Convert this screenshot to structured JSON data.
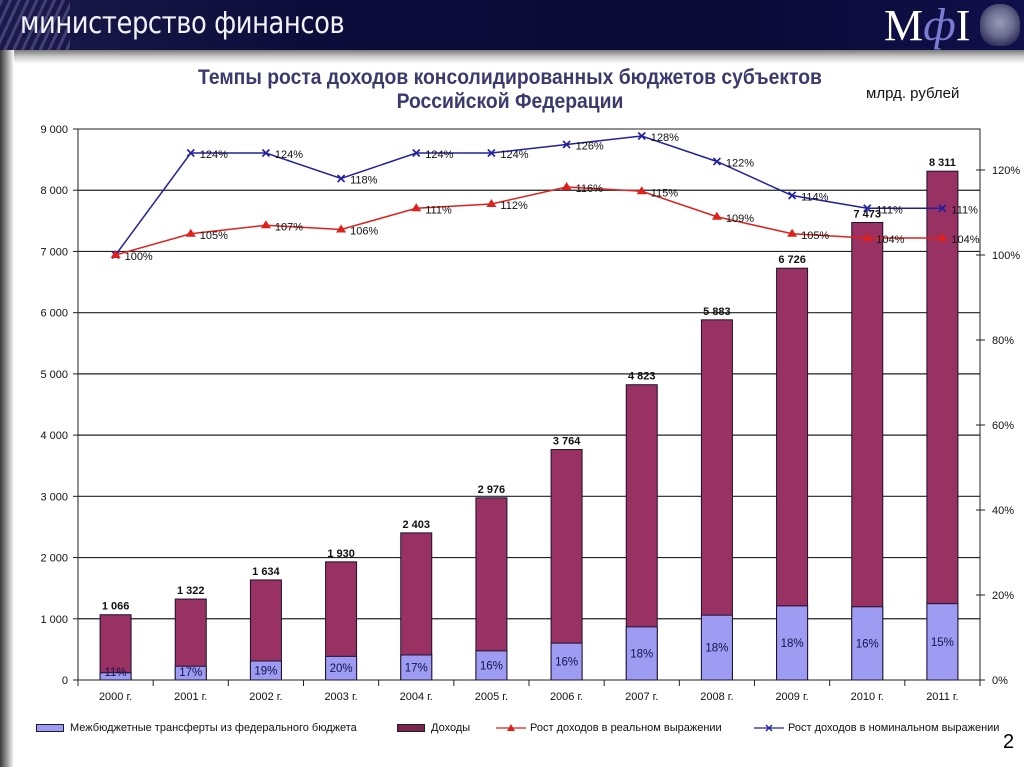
{
  "header": {
    "ministry_name": "министерство финансов",
    "logo_text_m": "М",
    "logo_text_phi": "ф",
    "logo_text_i": "I",
    "emblem_icon": "coat-of-arms-icon"
  },
  "slide": {
    "title_line1": "Темпы роста доходов консолидированных бюджетов субъектов",
    "title_line2": "Российской Федерации",
    "units": "млрд. рублей",
    "page_number": "2"
  },
  "colors": {
    "income": "#9a3163",
    "transfers": "#9d9cf2",
    "real_growth": "#e0201c",
    "nominal_growth": "#2020a0"
  },
  "chart_data": {
    "type": "bar",
    "title": "Темпы роста доходов консолидированных бюджетов субъектов Российской Федерации",
    "xlabel": "",
    "ylabel": "млрд. рублей",
    "categories": [
      "2000 г.",
      "2001 г.",
      "2002 г.",
      "2003 г.",
      "2004 г.",
      "2005 г.",
      "2006 г.",
      "2007 г.",
      "2008 г.",
      "2009 г.",
      "2010 г.",
      "2011 г."
    ],
    "ylim": [
      0,
      9000
    ],
    "y_ticks": [
      "0",
      "1 000",
      "2 000",
      "3 000",
      "4 000",
      "5 000",
      "6 000",
      "7 000",
      "8 000",
      "9 000"
    ],
    "y2lim": [
      0,
      1.3
    ],
    "y2_ticks": [
      "0%",
      "20%",
      "40%",
      "60%",
      "80%",
      "100%",
      "120%"
    ],
    "grid": true,
    "legend_position": "bottom",
    "series": [
      {
        "name": "Доходы",
        "kind": "bar",
        "axis": "left",
        "values": [
          1066,
          1322,
          1634,
          1930,
          2403,
          2976,
          3764,
          4823,
          5883,
          6726,
          7473,
          8311
        ],
        "labels": [
          "1 066",
          "1 322",
          "1 634",
          "1 930",
          "2 403",
          "2 976",
          "3 764",
          "4 823",
          "5 883",
          "6 726",
          "7 473",
          "8 311"
        ]
      },
      {
        "name": "Межбюджетные трансферты из федерального бюджета",
        "kind": "bar",
        "axis": "left",
        "share_percent": [
          11,
          17,
          19,
          20,
          17,
          16,
          16,
          18,
          18,
          18,
          16,
          15
        ],
        "labels": [
          "11%",
          "17%",
          "19%",
          "20%",
          "17%",
          "16%",
          "16%",
          "18%",
          "18%",
          "18%",
          "16%",
          "15%"
        ]
      },
      {
        "name": "Рост доходов в реальном выражении",
        "kind": "line",
        "axis": "right",
        "marker": "triangle",
        "values": [
          100,
          105,
          107,
          106,
          111,
          112,
          116,
          115,
          109,
          105,
          104,
          104
        ],
        "labels": [
          "100%",
          "105%",
          "107%",
          "106%",
          "111%",
          "112%",
          "116%",
          "115%",
          "109%",
          "105%",
          "104%",
          "104%"
        ]
      },
      {
        "name": "Рост доходов в номинальном выражении",
        "kind": "line",
        "axis": "right",
        "marker": "x",
        "values": [
          100,
          124,
          124,
          118,
          124,
          124,
          126,
          128,
          122,
          114,
          111,
          111
        ],
        "labels": [
          "",
          "124%",
          "124%",
          "118%",
          "124%",
          "124%",
          "126%",
          "128%",
          "122%",
          "114%",
          "111%",
          "111%"
        ]
      }
    ]
  }
}
